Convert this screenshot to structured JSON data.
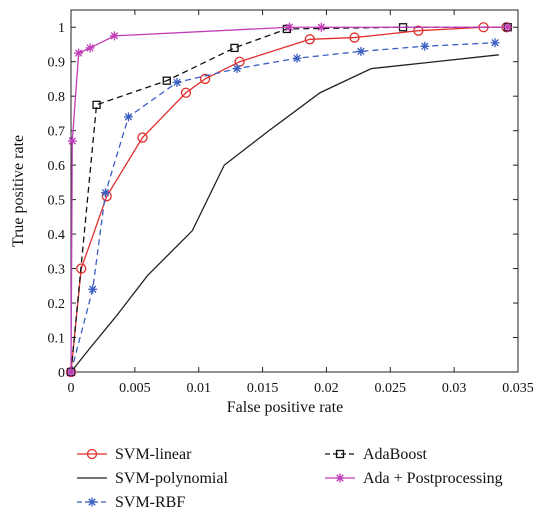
{
  "chart_data": {
    "type": "line",
    "title": "",
    "xlabel": "False positive rate",
    "ylabel": "True positive rate",
    "xlim": [
      0,
      0.035
    ],
    "ylim": [
      0,
      1.05
    ],
    "x_ticks": [
      "0",
      "0.005",
      "0.01",
      "0.015",
      "0.02",
      "0.025",
      "0.03",
      "0.035"
    ],
    "y_ticks": [
      "0",
      "0.1",
      "0.2",
      "0.3",
      "0.4",
      "0.5",
      "0.6",
      "0.7",
      "0.8",
      "0.9",
      "1"
    ],
    "x_tick_values": [
      0,
      0.005,
      0.01,
      0.015,
      0.02,
      0.025,
      0.03,
      0.035
    ],
    "y_tick_values": [
      0,
      0.1,
      0.2,
      0.3,
      0.4,
      0.5,
      0.6,
      0.7,
      0.8,
      0.9,
      1
    ],
    "grid": false,
    "legend_position": "bottom",
    "series": [
      {
        "name": "SVM-linear",
        "color": "#e0302e",
        "line_style": "solid",
        "marker": "circle",
        "x": [
          0,
          0.0008,
          0.0028,
          0.0056,
          0.009,
          0.0105,
          0.0132,
          0.0187,
          0.0222,
          0.0272,
          0.0323,
          0.0341
        ],
        "y": [
          0,
          0.3,
          0.51,
          0.68,
          0.81,
          0.85,
          0.9,
          0.965,
          0.97,
          0.99,
          1.0,
          1.0
        ]
      },
      {
        "name": "SVM-polynomial",
        "color": "#222222",
        "line_style": "solid",
        "marker": "none",
        "x": [
          0,
          0.0015,
          0.0035,
          0.006,
          0.0095,
          0.012,
          0.0155,
          0.0195,
          0.0235,
          0.0285,
          0.0335
        ],
        "y": [
          0,
          0.07,
          0.16,
          0.28,
          0.41,
          0.6,
          0.7,
          0.81,
          0.88,
          0.9,
          0.92
        ]
      },
      {
        "name": "SVM-RBF",
        "color": "#3a5fc2",
        "line_style": "dashed",
        "marker": "star",
        "x": [
          0,
          0.0017,
          0.0027,
          0.0045,
          0.0083,
          0.013,
          0.0177,
          0.0227,
          0.0277,
          0.0332
        ],
        "y": [
          0,
          0.24,
          0.52,
          0.74,
          0.84,
          0.88,
          0.91,
          0.93,
          0.945,
          0.955
        ]
      },
      {
        "name": "AdaBoost",
        "color": "#111111",
        "line_style": "dashed",
        "marker": "square",
        "x": [
          0,
          0.002,
          0.0075,
          0.0128,
          0.0169,
          0.026,
          0.0342
        ],
        "y": [
          0,
          0.775,
          0.845,
          0.94,
          0.995,
          1.0,
          1.0
        ]
      },
      {
        "name": "Ada + Postprocessing",
        "color": "#c03cb8",
        "line_style": "solid",
        "marker": "star",
        "x": [
          0,
          0.0001,
          0.0006,
          0.0015,
          0.0034,
          0.0171,
          0.0196,
          0.0342
        ],
        "y": [
          0,
          0.67,
          0.925,
          0.94,
          0.975,
          1.0,
          1.0,
          1.0
        ]
      }
    ]
  }
}
